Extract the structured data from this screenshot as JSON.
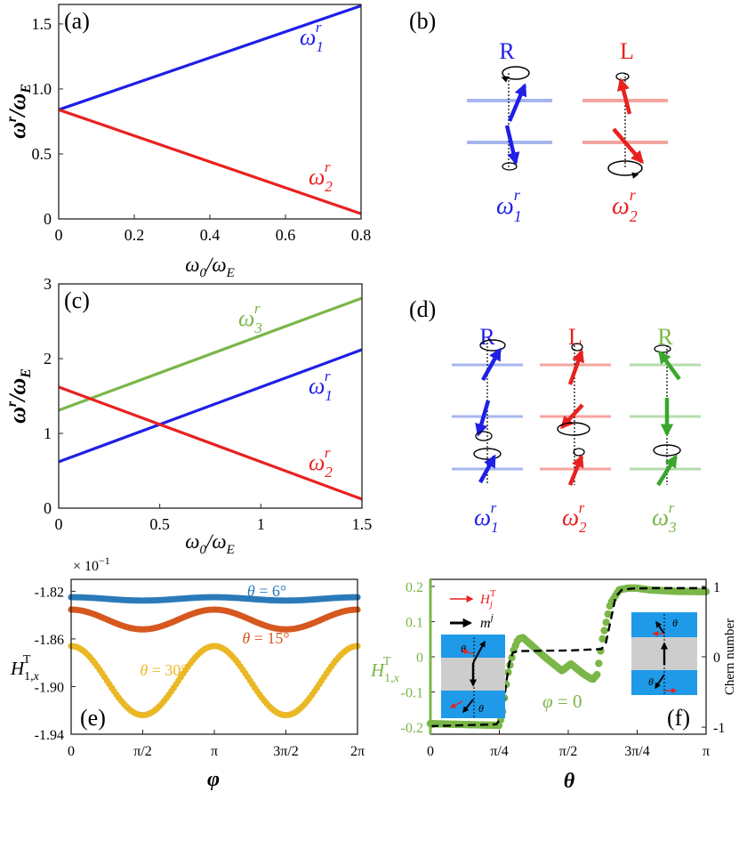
{
  "colors": {
    "blue": "#1f1fe6",
    "red": "#e8211f",
    "green": "#7ab648",
    "light_blue": "#a7b6ee",
    "light_red": "#f4a5a0",
    "light_green": "#b4dcac",
    "c6": "#2a7ab9",
    "c15": "#d6581f",
    "c30": "#ebb825",
    "fblue": "#1e9ae8",
    "fgray": "#cdcdcd"
  },
  "chart_data": [
    {
      "id": "a",
      "type": "line",
      "panel_label": "(a)",
      "xlabel": "ω0/ωE",
      "ylabel": "ωr/ωE",
      "xlim": [
        0,
        0.8
      ],
      "ylim": [
        0,
        1.65
      ],
      "xticks": [
        0,
        0.2,
        0.4,
        0.6,
        0.8
      ],
      "xtick_labels": [
        "0",
        "0.2",
        "0.4",
        "0.6",
        "0.8"
      ],
      "yticks": [
        0,
        0.5,
        1.0,
        1.5
      ],
      "ytick_labels": [
        "0",
        "0.5",
        "1.0",
        "1.5"
      ],
      "series": [
        {
          "name": "ω1r",
          "color": "blue",
          "x": [
            0,
            0.8
          ],
          "y": [
            0.84,
            1.64
          ]
        },
        {
          "name": "ω2r",
          "color": "red",
          "x": [
            0,
            0.8
          ],
          "y": [
            0.84,
            0.04
          ]
        }
      ]
    },
    {
      "id": "c",
      "type": "line",
      "panel_label": "(c)",
      "xlabel": "ω0/ωE",
      "ylabel": "ωr/ωE",
      "xlim": [
        0,
        1.5
      ],
      "ylim": [
        0,
        3
      ],
      "xticks": [
        0,
        0.5,
        1,
        1.5
      ],
      "xtick_labels": [
        "0",
        "0.5",
        "1",
        "1.5"
      ],
      "yticks": [
        0,
        1,
        2,
        3
      ],
      "ytick_labels": [
        "0",
        "1",
        "2",
        "3"
      ],
      "series": [
        {
          "name": "ω3r",
          "color": "green",
          "x": [
            0,
            1.5
          ],
          "y": [
            1.31,
            2.81
          ]
        },
        {
          "name": "ω1r",
          "color": "blue",
          "x": [
            0,
            1.5
          ],
          "y": [
            0.62,
            2.12
          ]
        },
        {
          "name": "ω2r",
          "color": "red",
          "x": [
            0,
            1.5
          ],
          "y": [
            1.62,
            0.12
          ]
        }
      ]
    },
    {
      "id": "e",
      "type": "scatter",
      "panel_label": "(e)",
      "xlabel": "φ",
      "ylabel": "H1,xT",
      "exponent_label": "× 10−1",
      "xlim": [
        0,
        6.2832
      ],
      "ylim": [
        -1.94,
        -1.81
      ],
      "xticks": [
        0,
        1.5708,
        3.1416,
        4.7124,
        6.2832
      ],
      "xtick_labels": [
        "0",
        "π/2",
        "π",
        "3π/2",
        "2π"
      ],
      "yticks": [
        -1.82,
        -1.86,
        -1.9,
        -1.94
      ],
      "ytick_labels": [
        "-1.82",
        "-1.86",
        "-1.90",
        "-1.94"
      ],
      "series": [
        {
          "name": "θ = 6°",
          "color": "c6",
          "mean": -1.8264,
          "amp": 0.0014
        },
        {
          "name": "θ = 15°",
          "color": "c15",
          "mean": -1.8437,
          "amp": 0.0083
        },
        {
          "name": "θ = 30°",
          "color": "c30",
          "mean": -1.895,
          "amp": 0.029
        }
      ]
    },
    {
      "id": "f",
      "type": "scatter",
      "panel_label": "(f)",
      "xlabel": "θ",
      "ylabel": "H1,xT",
      "y2label": "Chern number",
      "annotation": "φ = 0",
      "xlim": [
        0,
        3.1416
      ],
      "ylim": [
        -0.22,
        0.22
      ],
      "y2lim": [
        -1.1,
        1.1
      ],
      "xticks": [
        0,
        0.7854,
        1.5708,
        2.3562,
        3.1416
      ],
      "xtick_labels": [
        "0",
        "π/4",
        "π/2",
        "3π/4",
        "π"
      ],
      "yticks": [
        0.2,
        0.1,
        0,
        -0.1,
        -0.2
      ],
      "ytick_labels": [
        "0.2",
        "0.1",
        "0",
        "-0.1",
        "-0.2"
      ],
      "y2ticks": [
        1,
        0,
        -1
      ],
      "y2tick_labels": [
        "1",
        "0",
        "-1"
      ],
      "legend": [
        "HjT",
        "mj"
      ],
      "series": [
        {
          "name": "H1,xT",
          "color": "green",
          "x": [
            0,
            0.7854,
            0.82,
            0.88,
            0.95,
            1.0,
            1.05,
            1.12,
            1.3,
            1.5,
            1.6,
            1.75,
            1.85,
            1.9,
            1.96,
            2.05,
            2.15,
            2.25,
            2.35,
            2.5,
            2.8,
            3.1416
          ],
          "y": [
            -0.19,
            -0.195,
            -0.16,
            -0.05,
            0.02,
            0.05,
            0.055,
            0.04,
            0.0,
            -0.04,
            -0.02,
            -0.05,
            -0.065,
            -0.05,
            0.05,
            0.15,
            0.19,
            0.195,
            0.195,
            0.19,
            0.186,
            0.185
          ]
        },
        {
          "name": "Chern number",
          "color": "black",
          "dashed": true,
          "x": [
            0,
            0.75,
            0.82,
            0.86,
            0.9,
            0.94,
            1.0,
            1.2,
            1.6,
            1.95,
            2.0,
            2.06,
            2.11,
            2.18,
            2.3,
            2.6,
            3.1416
          ],
          "y": [
            -0.985,
            -0.96,
            -0.85,
            -0.4,
            -0.08,
            0.06,
            0.08,
            0.085,
            0.09,
            0.11,
            0.2,
            0.55,
            0.85,
            0.95,
            0.97,
            0.975,
            0.975
          ]
        }
      ]
    }
  ],
  "schematic_b": {
    "panel_label": "(b)",
    "columns": [
      {
        "title": "R",
        "color": "blue",
        "freq_label": "ω1r"
      },
      {
        "title": "L",
        "color": "red",
        "freq_label": "ω2r"
      }
    ]
  },
  "schematic_d": {
    "panel_label": "(d)",
    "columns": [
      {
        "title": "R",
        "color": "blue",
        "freq_label": "ω1r"
      },
      {
        "title": "L",
        "color": "red",
        "freq_label": "ω2r"
      },
      {
        "title": "R",
        "color": "green",
        "freq_label": "ω3r"
      }
    ]
  }
}
